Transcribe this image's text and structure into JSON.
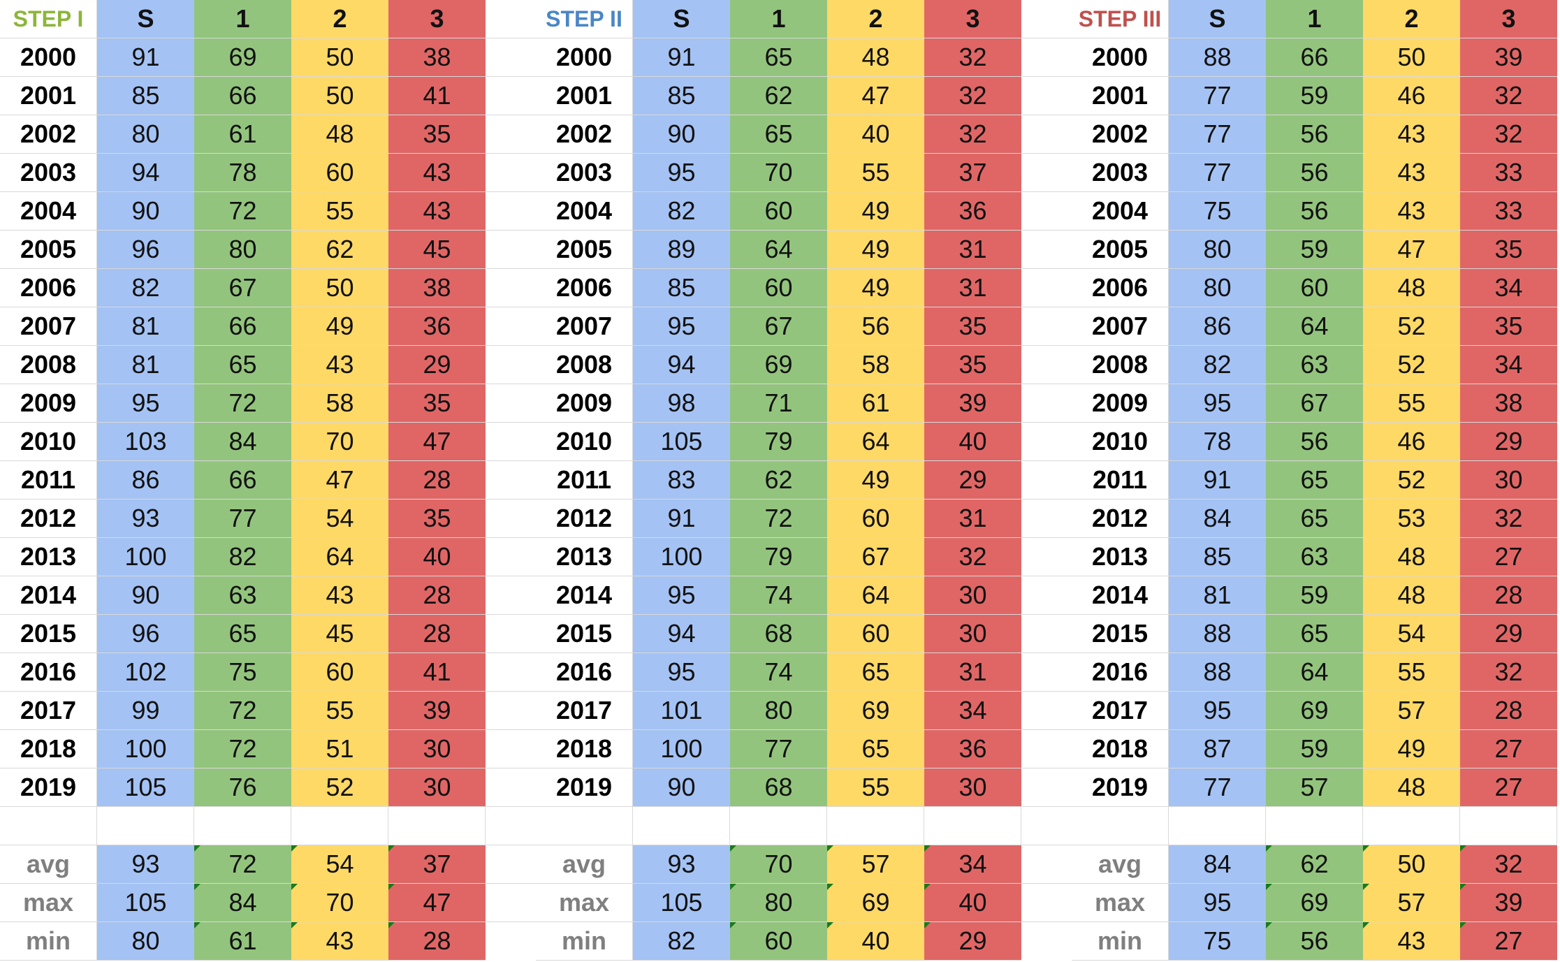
{
  "colors": {
    "S": "#a4c2f4",
    "1": "#93c47d",
    "2": "#ffd966",
    "3": "#e06666",
    "step1": "#8db53a",
    "step2": "#4a86c8",
    "step3": "#c0504d"
  },
  "headers": [
    "S",
    "1",
    "2",
    "3"
  ],
  "steps": [
    {
      "label": "STEP I",
      "color_key": "step1",
      "rows": [
        [
          "2000",
          "91",
          "69",
          "50",
          "38"
        ],
        [
          "2001",
          "85",
          "66",
          "50",
          "41"
        ],
        [
          "2002",
          "80",
          "61",
          "48",
          "35"
        ],
        [
          "2003",
          "94",
          "78",
          "60",
          "43"
        ],
        [
          "2004",
          "90",
          "72",
          "55",
          "43"
        ],
        [
          "2005",
          "96",
          "80",
          "62",
          "45"
        ],
        [
          "2006",
          "82",
          "67",
          "50",
          "38"
        ],
        [
          "2007",
          "81",
          "66",
          "49",
          "36"
        ],
        [
          "2008",
          "81",
          "65",
          "43",
          "29"
        ],
        [
          "2009",
          "95",
          "72",
          "58",
          "35"
        ],
        [
          "2010",
          "103",
          "84",
          "70",
          "47"
        ],
        [
          "2011",
          "86",
          "66",
          "47",
          "28"
        ],
        [
          "2012",
          "93",
          "77",
          "54",
          "35"
        ],
        [
          "2013",
          "100",
          "82",
          "64",
          "40"
        ],
        [
          "2014",
          "90",
          "63",
          "43",
          "28"
        ],
        [
          "2015",
          "96",
          "65",
          "45",
          "28"
        ],
        [
          "2016",
          "102",
          "75",
          "60",
          "41"
        ],
        [
          "2017",
          "99",
          "72",
          "55",
          "39"
        ],
        [
          "2018",
          "100",
          "72",
          "51",
          "30"
        ],
        [
          "2019",
          "105",
          "76",
          "52",
          "30"
        ]
      ],
      "stats": [
        [
          "avg",
          "93",
          "72",
          "54",
          "37"
        ],
        [
          "max",
          "105",
          "84",
          "70",
          "47"
        ],
        [
          "min",
          "80",
          "61",
          "43",
          "28"
        ]
      ]
    },
    {
      "label": "STEP II",
      "color_key": "step2",
      "rows": [
        [
          "2000",
          "91",
          "65",
          "48",
          "32"
        ],
        [
          "2001",
          "85",
          "62",
          "47",
          "32"
        ],
        [
          "2002",
          "90",
          "65",
          "40",
          "32"
        ],
        [
          "2003",
          "95",
          "70",
          "55",
          "37"
        ],
        [
          "2004",
          "82",
          "60",
          "49",
          "36"
        ],
        [
          "2005",
          "89",
          "64",
          "49",
          "31"
        ],
        [
          "2006",
          "85",
          "60",
          "49",
          "31"
        ],
        [
          "2007",
          "95",
          "67",
          "56",
          "35"
        ],
        [
          "2008",
          "94",
          "69",
          "58",
          "35"
        ],
        [
          "2009",
          "98",
          "71",
          "61",
          "39"
        ],
        [
          "2010",
          "105",
          "79",
          "64",
          "40"
        ],
        [
          "2011",
          "83",
          "62",
          "49",
          "29"
        ],
        [
          "2012",
          "91",
          "72",
          "60",
          "31"
        ],
        [
          "2013",
          "100",
          "79",
          "67",
          "32"
        ],
        [
          "2014",
          "95",
          "74",
          "64",
          "30"
        ],
        [
          "2015",
          "94",
          "68",
          "60",
          "30"
        ],
        [
          "2016",
          "95",
          "74",
          "65",
          "31"
        ],
        [
          "2017",
          "101",
          "80",
          "69",
          "34"
        ],
        [
          "2018",
          "100",
          "77",
          "65",
          "36"
        ],
        [
          "2019",
          "90",
          "68",
          "55",
          "30"
        ]
      ],
      "stats": [
        [
          "avg",
          "93",
          "70",
          "57",
          "34"
        ],
        [
          "max",
          "105",
          "80",
          "69",
          "40"
        ],
        [
          "min",
          "82",
          "60",
          "40",
          "29"
        ]
      ]
    },
    {
      "label": "STEP III",
      "color_key": "step3",
      "rows": [
        [
          "2000",
          "88",
          "66",
          "50",
          "39"
        ],
        [
          "2001",
          "77",
          "59",
          "46",
          "32"
        ],
        [
          "2002",
          "77",
          "56",
          "43",
          "32"
        ],
        [
          "2003",
          "77",
          "56",
          "43",
          "33"
        ],
        [
          "2004",
          "75",
          "56",
          "43",
          "33"
        ],
        [
          "2005",
          "80",
          "59",
          "47",
          "35"
        ],
        [
          "2006",
          "80",
          "60",
          "48",
          "34"
        ],
        [
          "2007",
          "86",
          "64",
          "52",
          "35"
        ],
        [
          "2008",
          "82",
          "63",
          "52",
          "34"
        ],
        [
          "2009",
          "95",
          "67",
          "55",
          "38"
        ],
        [
          "2010",
          "78",
          "56",
          "46",
          "29"
        ],
        [
          "2011",
          "91",
          "65",
          "52",
          "30"
        ],
        [
          "2012",
          "84",
          "65",
          "53",
          "32"
        ],
        [
          "2013",
          "85",
          "63",
          "48",
          "27"
        ],
        [
          "2014",
          "81",
          "59",
          "48",
          "28"
        ],
        [
          "2015",
          "88",
          "65",
          "54",
          "29"
        ],
        [
          "2016",
          "88",
          "64",
          "55",
          "32"
        ],
        [
          "2017",
          "95",
          "69",
          "57",
          "28"
        ],
        [
          "2018",
          "87",
          "59",
          "49",
          "27"
        ],
        [
          "2019",
          "77",
          "57",
          "48",
          "27"
        ]
      ],
      "stats": [
        [
          "avg",
          "84",
          "62",
          "50",
          "32"
        ],
        [
          "max",
          "95",
          "69",
          "57",
          "39"
        ],
        [
          "min",
          "75",
          "56",
          "43",
          "27"
        ]
      ]
    }
  ]
}
